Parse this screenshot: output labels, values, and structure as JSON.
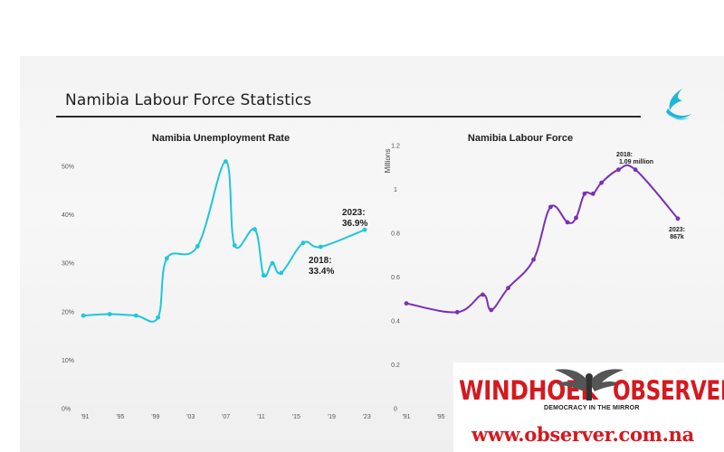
{
  "header": {
    "title": "Namibia Labour Force Statistics"
  },
  "chart_data": [
    {
      "type": "line",
      "title": "Namibia Unemployment Rate",
      "ylabel": "",
      "color": "#1fc6dc",
      "ylim": [
        0,
        50
      ],
      "yticks": [
        "0%",
        "10%",
        "20%",
        "30%",
        "40%",
        "50%"
      ],
      "xlim": [
        1991,
        2023
      ],
      "xticks": [
        "'91",
        "'95",
        "'99",
        "'03",
        "'07",
        "'11",
        "'15",
        "'19",
        "'23"
      ],
      "x": [
        1991,
        1994,
        1997,
        1999.5,
        2000.5,
        2004,
        2007.2,
        2008.2,
        2010.5,
        2011.5,
        2012.5,
        2013.5,
        2016,
        2018,
        2023
      ],
      "y": [
        19.2,
        19.5,
        19.2,
        18.8,
        31,
        33.5,
        51,
        33.7,
        37,
        27.5,
        30,
        28,
        34.2,
        33.4,
        36.9
      ],
      "annotations": [
        {
          "label": "2023:",
          "value": "36.9%"
        },
        {
          "label": "2018:",
          "value": "33.4%"
        }
      ]
    },
    {
      "type": "line",
      "title": "Namibia Labour Force",
      "ylabel": "Millions",
      "color": "#7b2fb7",
      "ylim": [
        0,
        1.2
      ],
      "yticks": [
        "0",
        "0.2",
        "0.4",
        "0.6",
        "0.8",
        "1",
        "1.2"
      ],
      "xlim": [
        1991,
        2023
      ],
      "xticks": [
        "'91",
        "'95"
      ],
      "x": [
        1991,
        1997,
        2000,
        2001,
        2003,
        2006,
        2008,
        2010,
        2011,
        2012,
        2013,
        2014,
        2016,
        2018,
        2023
      ],
      "y": [
        0.48,
        0.44,
        0.52,
        0.45,
        0.55,
        0.68,
        0.92,
        0.85,
        0.87,
        0.98,
        0.98,
        1.03,
        1.09,
        1.09,
        0.867
      ],
      "annotations": [
        {
          "label": "2018:",
          "value": "1.09 million"
        },
        {
          "label": "2023:",
          "value": "867k"
        }
      ]
    }
  ],
  "watermark": {
    "brand_left": "WINDHOEK",
    "brand_right": "OBSERVER",
    "tagline": "DEMOCRACY IN THE MIRROR",
    "url": "www.observer.com.na",
    "brand_color": "#d5191f"
  },
  "logo": {
    "icon": "wave-swirl-icon",
    "color": "#1fb6d9"
  }
}
